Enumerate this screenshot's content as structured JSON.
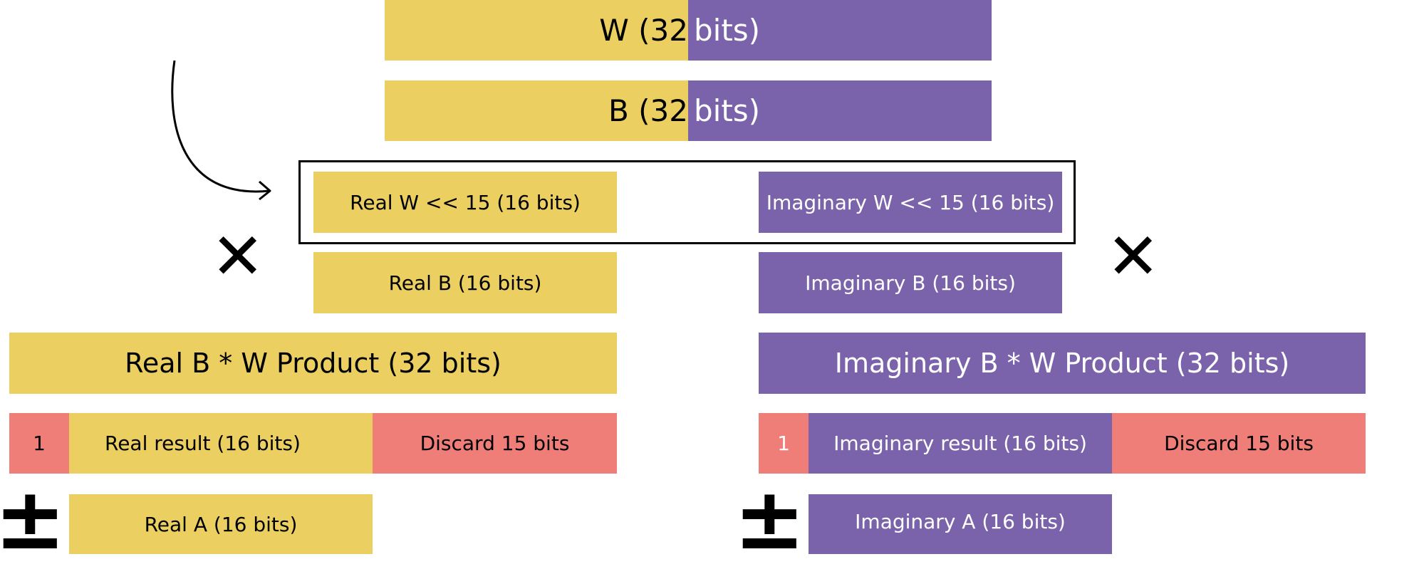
{
  "colors": {
    "real": "#ebcf61",
    "imaginary": "#7a63ab",
    "discard": "#ef7d78"
  },
  "top": {
    "w_label_left": "W (32",
    "w_label_right": "bits)",
    "b_label_left": "B (32",
    "b_label_right": "bits)"
  },
  "split": {
    "real_w": "Real W << 15 (16 bits)",
    "imag_w": "Imaginary W << 15 (16 bits)",
    "real_b": "Real B (16 bits)",
    "imag_b": "Imaginary B (16 bits)"
  },
  "operators": {
    "multiply": "✕",
    "plus_minus": "±"
  },
  "products": {
    "real": "Real B * W Product (32 bits)",
    "imag": "Imaginary B * W Product (32 bits)"
  },
  "results": {
    "real_bit": "1",
    "real_result": "Real result (16 bits)",
    "real_discard": "Discard 15 bits",
    "imag_bit": "1",
    "imag_result": "Imaginary result (16 bits)",
    "imag_discard": "Discard 15 bits"
  },
  "adds": {
    "real_a": "Real A (16 bits)",
    "imag_a": "Imaginary A (16 bits)"
  }
}
